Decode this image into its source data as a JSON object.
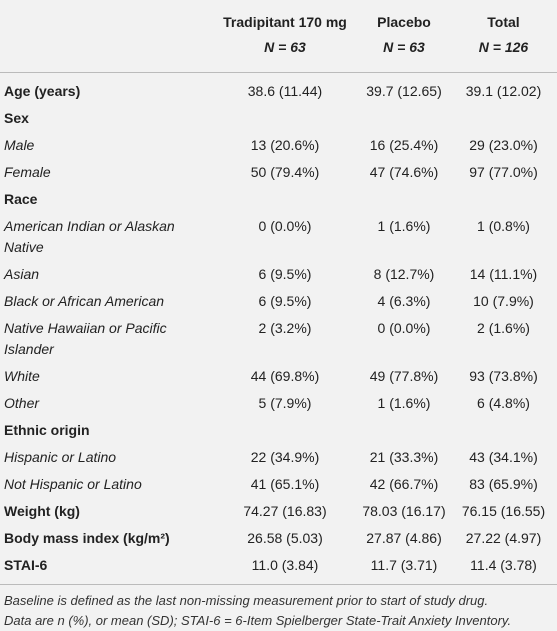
{
  "table": {
    "columns": [
      {
        "name": "Tradipitant 170 mg",
        "n": "N = 63"
      },
      {
        "name": "Placebo",
        "n": "N = 63"
      },
      {
        "name": "Total",
        "n": "N = 126"
      }
    ],
    "rows": [
      {
        "label": "Age (years)",
        "values": [
          "38.6 (11.44)",
          "39.7 (12.65)",
          "39.1 (12.02)"
        ]
      },
      {
        "label": "Sex",
        "items": [
          {
            "label": "Male",
            "values": [
              "13 (20.6%)",
              "16 (25.4%)",
              "29 (23.0%)"
            ]
          },
          {
            "label": "Female",
            "values": [
              "50 (79.4%)",
              "47 (74.6%)",
              "97 (77.0%)"
            ]
          }
        ]
      },
      {
        "label": "Race",
        "items": [
          {
            "label": "American Indian or Alaskan Native",
            "values": [
              "0 (0.0%)",
              "1 (1.6%)",
              "1 (0.8%)"
            ]
          },
          {
            "label": "Asian",
            "values": [
              "6 (9.5%)",
              "8 (12.7%)",
              "14 (11.1%)"
            ]
          },
          {
            "label": "Black or African American",
            "values": [
              "6 (9.5%)",
              "4 (6.3%)",
              "10 (7.9%)"
            ]
          },
          {
            "label": "Native Hawaiian or Pacific Islander",
            "values": [
              "2 (3.2%)",
              "0 (0.0%)",
              "2 (1.6%)"
            ]
          },
          {
            "label": "White",
            "values": [
              "44 (69.8%)",
              "49 (77.8%)",
              "93 (73.8%)"
            ]
          },
          {
            "label": "Other",
            "values": [
              "5 (7.9%)",
              "1 (1.6%)",
              "6 (4.8%)"
            ]
          }
        ]
      },
      {
        "label": "Ethnic origin",
        "items": [
          {
            "label": "Hispanic or Latino",
            "values": [
              "22 (34.9%)",
              "21 (33.3%)",
              "43 (34.1%)"
            ]
          },
          {
            "label": "Not Hispanic or Latino",
            "values": [
              "41 (65.1%)",
              "42 (66.7%)",
              "83 (65.9%)"
            ]
          }
        ]
      },
      {
        "label": "Weight (kg)",
        "values": [
          "74.27 (16.83)",
          "78.03 (16.17)",
          "76.15 (16.55)"
        ]
      },
      {
        "label": "Body mass index (kg/m²)",
        "values": [
          "26.58 (5.03)",
          "27.87 (4.86)",
          "27.22 (4.97)"
        ]
      },
      {
        "label": "STAI-6",
        "values": [
          "11.0 (3.84)",
          "11.7 (3.71)",
          "11.4 (3.78)"
        ]
      }
    ],
    "notes": [
      "Baseline is defined as the last non-missing measurement prior to start of study drug.",
      "Data are n (%), or mean (SD); STAI-6 = 6-Item Spielberger State-Trait Anxiety Inventory."
    ]
  }
}
